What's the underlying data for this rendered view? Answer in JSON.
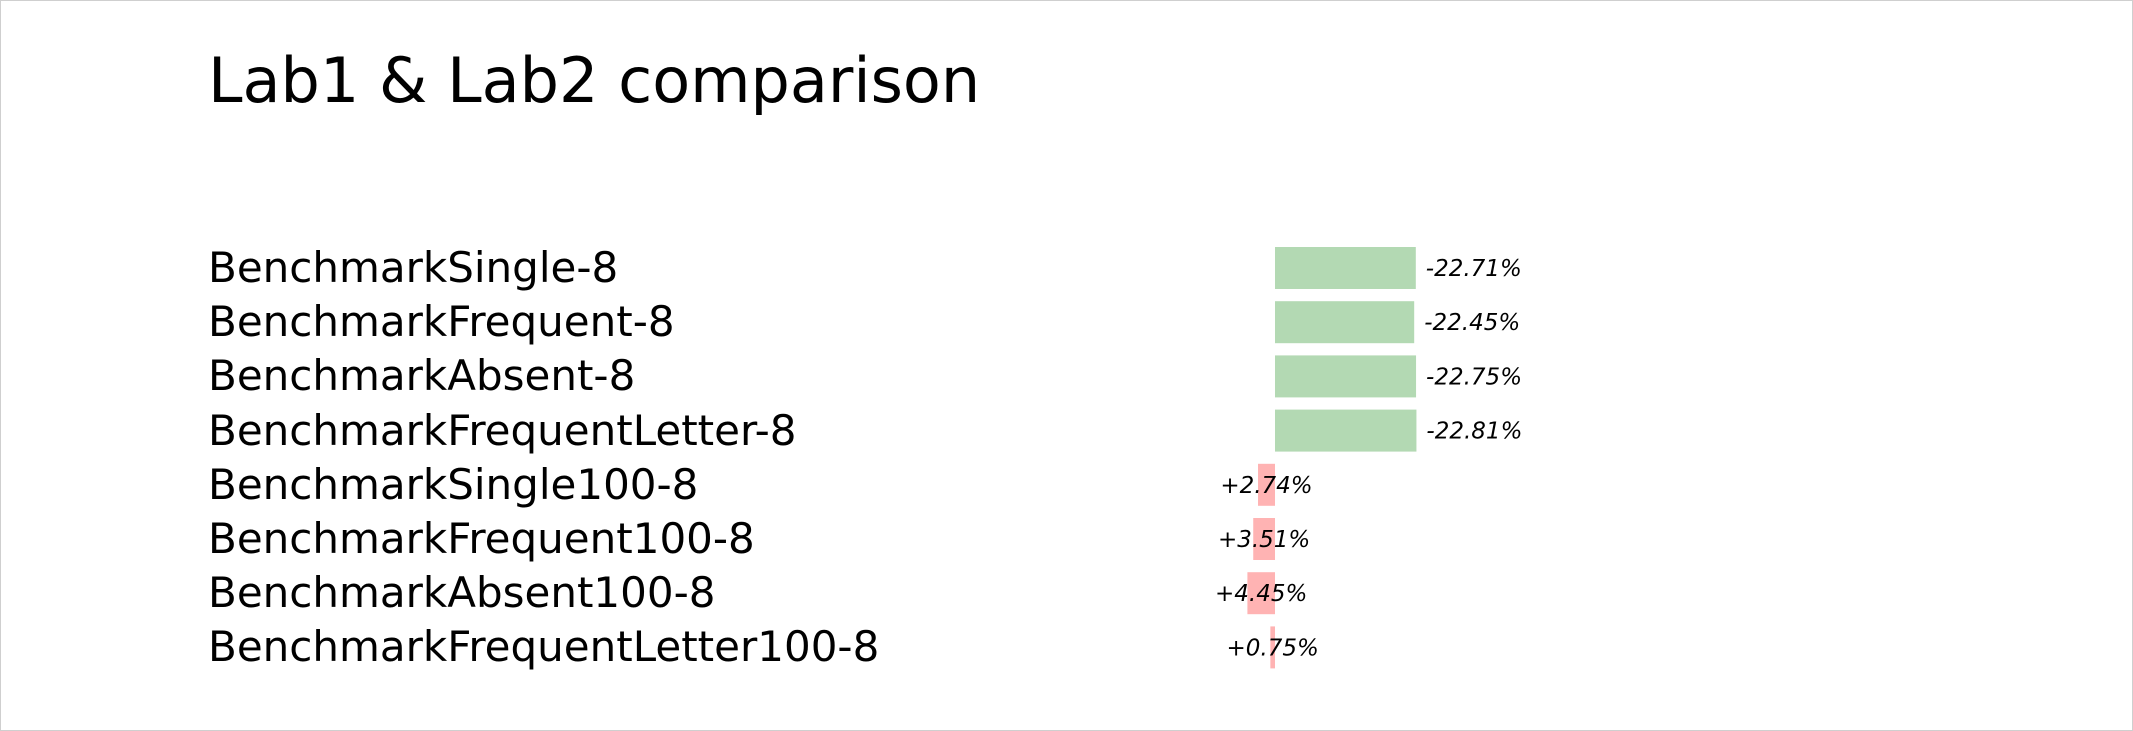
{
  "page_title": "Lab1 & Lab2 comparison",
  "chart_data": {
    "type": "bar",
    "orientation": "horizontal",
    "title": "Lab1 & Lab2 comparison",
    "xlabel": "",
    "ylabel": "",
    "grid": false,
    "categories": [
      "BenchmarkSingle-8",
      "BenchmarkFrequent-8",
      "BenchmarkAbsent-8",
      "BenchmarkFrequentLetter-8",
      "BenchmarkSingle100-8",
      "BenchmarkFrequent100-8",
      "BenchmarkAbsent100-8",
      "BenchmarkFrequentLetter100-8"
    ],
    "values": [
      -22.71,
      -22.45,
      -22.75,
      -22.81,
      2.74,
      3.51,
      4.45,
      0.75
    ],
    "value_labels": [
      "-22.71%",
      "-22.45%",
      "-22.75%",
      "-22.81%",
      "+2.74%",
      "+3.51%",
      "+4.45%",
      "+0.75%"
    ],
    "colors": {
      "improvement": "#b3d9b3",
      "regression": "#ffb3b3"
    }
  }
}
